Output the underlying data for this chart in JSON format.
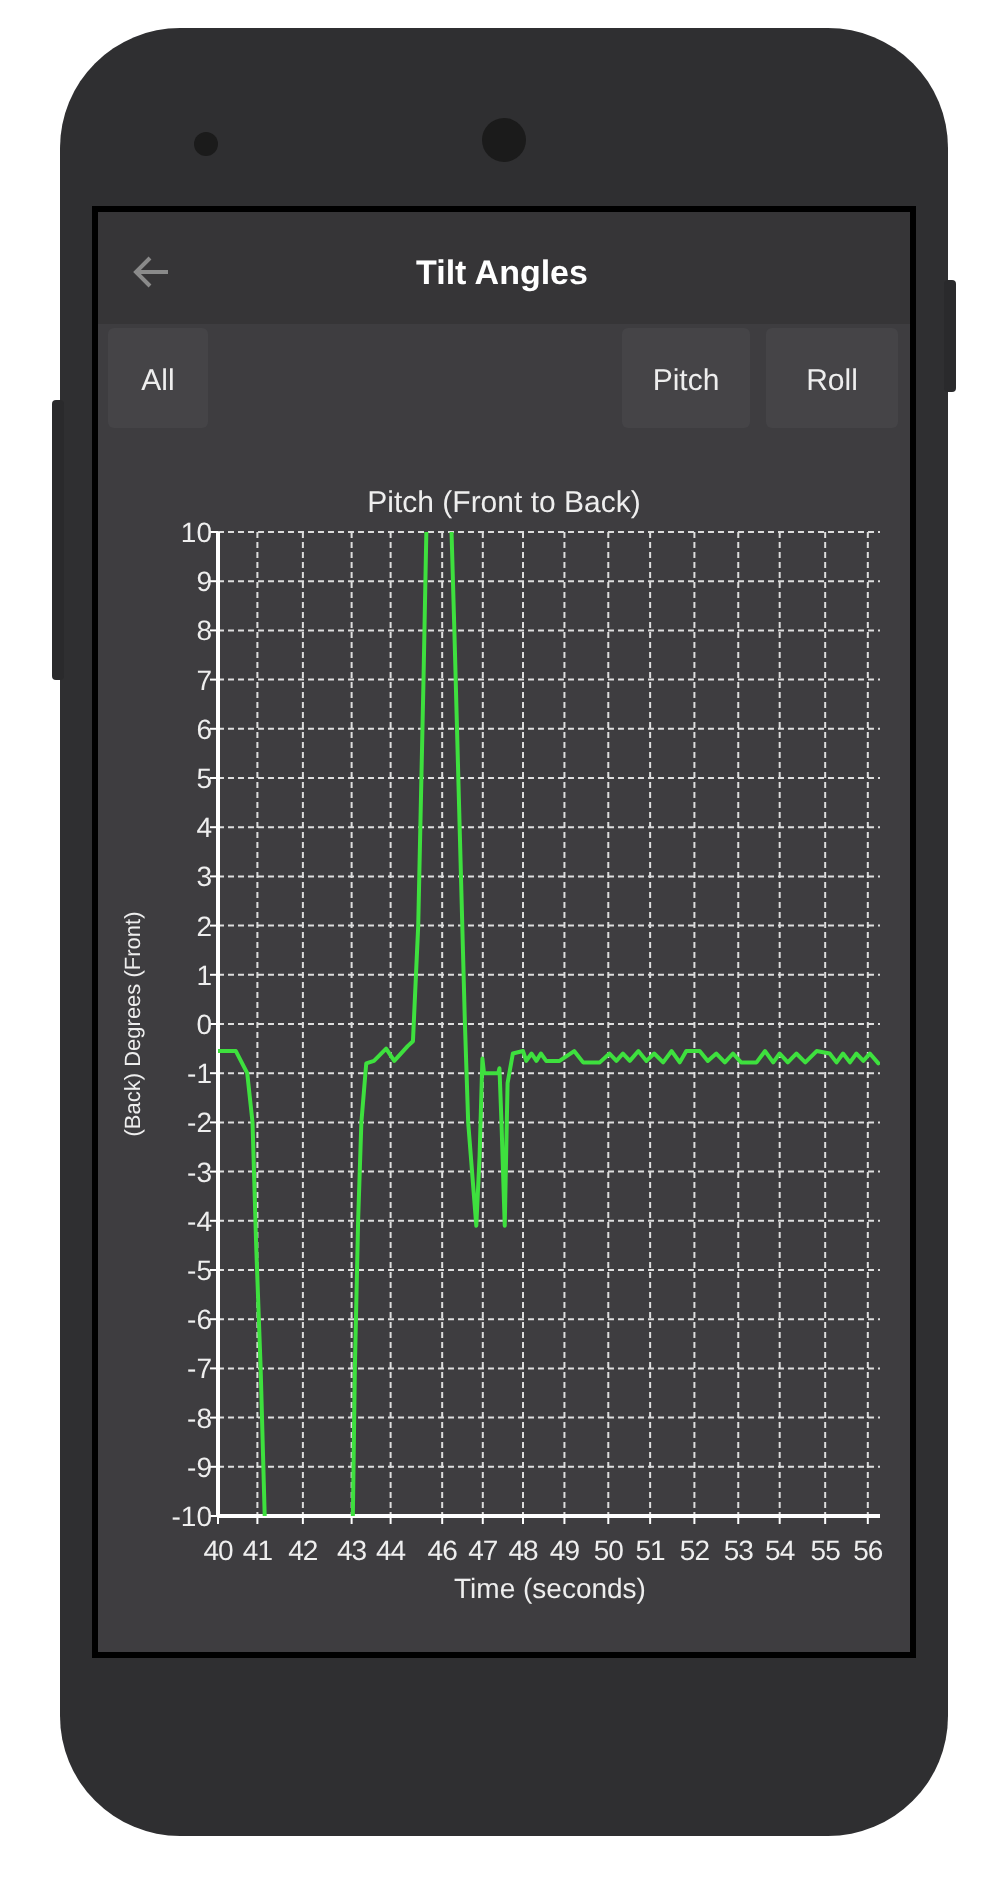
{
  "chart_data": {
    "type": "line",
    "title": "Pitch (Front to Back)",
    "xlabel": "Time (seconds)",
    "ylabel": "(Back) Degrees (Front)",
    "annotations": [
      "Tilt Angles",
      "All",
      "Pitch",
      "Roll"
    ],
    "xlim": [
      40,
      56.3
    ],
    "ylim": [
      -10,
      10
    ],
    "xticks": [
      40,
      {
        "value": 40.97,
        "label": "41"
      },
      {
        "value": 42.09,
        "label": "42"
      },
      {
        "value": 43.29,
        "label": "43"
      },
      {
        "value": 44.25,
        "label": "44"
      },
      {
        "value": 45.52,
        "label": "46"
      },
      {
        "value": 46.52,
        "label": "47"
      },
      {
        "value": 47.51,
        "label": "48"
      },
      {
        "value": 48.53,
        "label": "49"
      },
      {
        "value": 49.61,
        "label": "50"
      },
      {
        "value": 50.64,
        "label": "51"
      },
      {
        "value": 51.73,
        "label": "52"
      },
      {
        "value": 52.81,
        "label": "53"
      },
      {
        "value": 53.83,
        "label": "54"
      },
      {
        "value": 54.95,
        "label": "55"
      },
      56
    ],
    "yticks": [
      -10,
      -9,
      -8,
      -7,
      -6,
      -5,
      -4,
      -3,
      -2,
      -1,
      0,
      1,
      2,
      3,
      4,
      5,
      6,
      7,
      8,
      9,
      10
    ],
    "grid": true,
    "line_style": "solid",
    "series": [
      {
        "color": "#3ee03e",
        "x": [
          40,
          40.44,
          40.72,
          40.85,
          40.94,
          41.05,
          41.15,
          42.2,
          43.32,
          43.37,
          43.45,
          43.53,
          43.65,
          43.84,
          44.14,
          44.34,
          44.67,
          44.8,
          44.93,
          45.06,
          45.13,
          45.4,
          45.75,
          45.82,
          45.95,
          46.08,
          46.16,
          46.36,
          46.44,
          46.51,
          46.55,
          46.9,
          46.93,
          46.98,
          47.06,
          47.13,
          47.26,
          47.51,
          47.59,
          47.72,
          47.84,
          47.95,
          48.08,
          48.41,
          48.77,
          48.99,
          49.4,
          49.64,
          49.81,
          49.97,
          50.14,
          50.35,
          50.55,
          50.74,
          50.96,
          51.17,
          51.37,
          51.53,
          51.86,
          52.06,
          52.27,
          52.48,
          52.68,
          52.88,
          53.26,
          53.47,
          53.67,
          53.83,
          54.03,
          54.24,
          54.46,
          54.74,
          55.06,
          55.23,
          55.39,
          55.56,
          55.72,
          55.89,
          56.05,
          56.26
        ],
        "values": [
          -0.55,
          -0.55,
          -1,
          -2,
          -4.5,
          -7,
          -10,
          null,
          -10,
          -7,
          -4,
          -2,
          -0.8,
          -0.75,
          -0.5,
          -0.75,
          -0.45,
          -0.35,
          2,
          7,
          10,
          null,
          10,
          8,
          4,
          0,
          -2,
          -4.1,
          -2.7,
          -0.7,
          -1,
          -1,
          -0.9,
          -2,
          -4.1,
          -1.2,
          -0.6,
          -0.55,
          -0.75,
          -0.6,
          -0.75,
          -0.6,
          -0.75,
          -0.75,
          -0.55,
          -0.78,
          -0.78,
          -0.6,
          -0.75,
          -0.6,
          -0.75,
          -0.55,
          -0.75,
          -0.6,
          -0.78,
          -0.55,
          -0.78,
          -0.55,
          -0.55,
          -0.75,
          -0.6,
          -0.78,
          -0.6,
          -0.78,
          -0.78,
          -0.55,
          -0.78,
          -0.6,
          -0.78,
          -0.6,
          -0.78,
          -0.55,
          -0.6,
          -0.78,
          -0.6,
          -0.78,
          -0.6,
          -0.75,
          -0.6,
          -0.8
        ]
      }
    ]
  }
}
